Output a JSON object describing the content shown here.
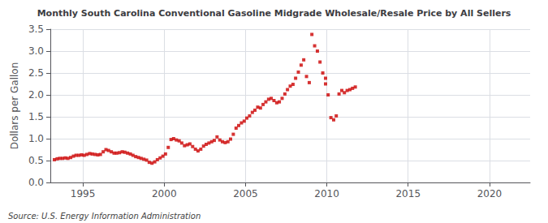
{
  "chart_data": {
    "type": "scatter",
    "title": "Monthly South Carolina Conventional Gasoline Midgrade Wholesale/Resale Price by All Sellers",
    "ylabel": "Dollars per Gallon",
    "annotations": [
      "Source: U.S. Energy Information Administration"
    ],
    "color": "#cc0000",
    "marker": "square",
    "grid": true,
    "xlim": [
      1993.0,
      2022.5
    ],
    "ylim": [
      0.0,
      3.5
    ],
    "xticks": [
      1995,
      2000,
      2005,
      2010,
      2015,
      2020
    ],
    "yticks": [
      {
        "value": 0.0,
        "label": "0.0"
      },
      0.5,
      {
        "value": 1.0,
        "label": "1.0"
      },
      1.5,
      {
        "value": 2.0,
        "label": "2.0"
      },
      2.5,
      {
        "value": 3.0,
        "label": "3.0"
      },
      3.5
    ],
    "x": [
      1993.25,
      1993.42,
      1993.58,
      1993.75,
      1993.92,
      1994.08,
      1994.25,
      1994.42,
      1994.58,
      1994.75,
      1994.92,
      1995.08,
      1995.25,
      1995.42,
      1995.58,
      1995.75,
      1995.92,
      1996.08,
      1996.25,
      1996.42,
      1996.58,
      1996.75,
      1996.92,
      1997.08,
      1997.25,
      1997.42,
      1997.58,
      1997.75,
      1997.92,
      1998.08,
      1998.25,
      1998.42,
      1998.58,
      1998.75,
      1998.92,
      1999.08,
      1999.25,
      1999.42,
      1999.58,
      1999.75,
      1999.92,
      2000.08,
      2000.25,
      2000.42,
      2000.58,
      2000.75,
      2000.92,
      2001.08,
      2001.25,
      2001.42,
      2001.58,
      2001.75,
      2001.92,
      2002.08,
      2002.25,
      2002.42,
      2002.58,
      2002.75,
      2002.92,
      2003.08,
      2003.25,
      2003.42,
      2003.58,
      2003.75,
      2003.92,
      2004.08,
      2004.25,
      2004.42,
      2004.58,
      2004.75,
      2004.92,
      2005.08,
      2005.25,
      2005.42,
      2005.58,
      2005.75,
      2005.92,
      2006.08,
      2006.25,
      2006.42,
      2006.58,
      2006.75,
      2006.92,
      2007.08,
      2007.25,
      2007.42,
      2007.58,
      2007.75,
      2007.92,
      2008.08,
      2008.25,
      2008.42,
      2008.58,
      2008.75,
      2008.92,
      2009.08,
      2009.25,
      2009.42,
      2009.58,
      2009.75,
      2009.92,
      2009.92,
      2010.08,
      2010.25,
      2010.42,
      2010.58,
      2010.75,
      2010.92,
      2011.08,
      2011.25,
      2011.42,
      2011.58,
      2011.75
    ],
    "values": [
      0.52,
      0.54,
      0.55,
      0.55,
      0.56,
      0.55,
      0.57,
      0.6,
      0.62,
      0.62,
      0.63,
      0.62,
      0.64,
      0.66,
      0.65,
      0.64,
      0.63,
      0.64,
      0.7,
      0.75,
      0.73,
      0.7,
      0.67,
      0.67,
      0.68,
      0.7,
      0.69,
      0.67,
      0.65,
      0.62,
      0.59,
      0.57,
      0.55,
      0.53,
      0.51,
      0.46,
      0.44,
      0.47,
      0.52,
      0.56,
      0.6,
      0.65,
      0.8,
      0.98,
      1.0,
      0.97,
      0.95,
      0.9,
      0.84,
      0.86,
      0.88,
      0.82,
      0.76,
      0.72,
      0.76,
      0.83,
      0.87,
      0.9,
      0.93,
      0.96,
      1.04,
      0.97,
      0.93,
      0.91,
      0.93,
      0.99,
      1.1,
      1.24,
      1.3,
      1.36,
      1.4,
      1.47,
      1.52,
      1.6,
      1.65,
      1.72,
      1.7,
      1.78,
      1.84,
      1.9,
      1.92,
      1.87,
      1.82,
      1.84,
      1.92,
      2.02,
      2.12,
      2.2,
      2.24,
      2.38,
      2.52,
      2.68,
      2.8,
      2.42,
      2.28,
      3.38,
      3.12,
      3.0,
      2.75,
      2.5,
      2.38,
      2.25,
      2.0,
      1.48,
      1.43,
      1.52,
      2.02,
      2.1,
      2.05,
      2.1,
      2.12,
      2.15,
      2.18
    ]
  }
}
